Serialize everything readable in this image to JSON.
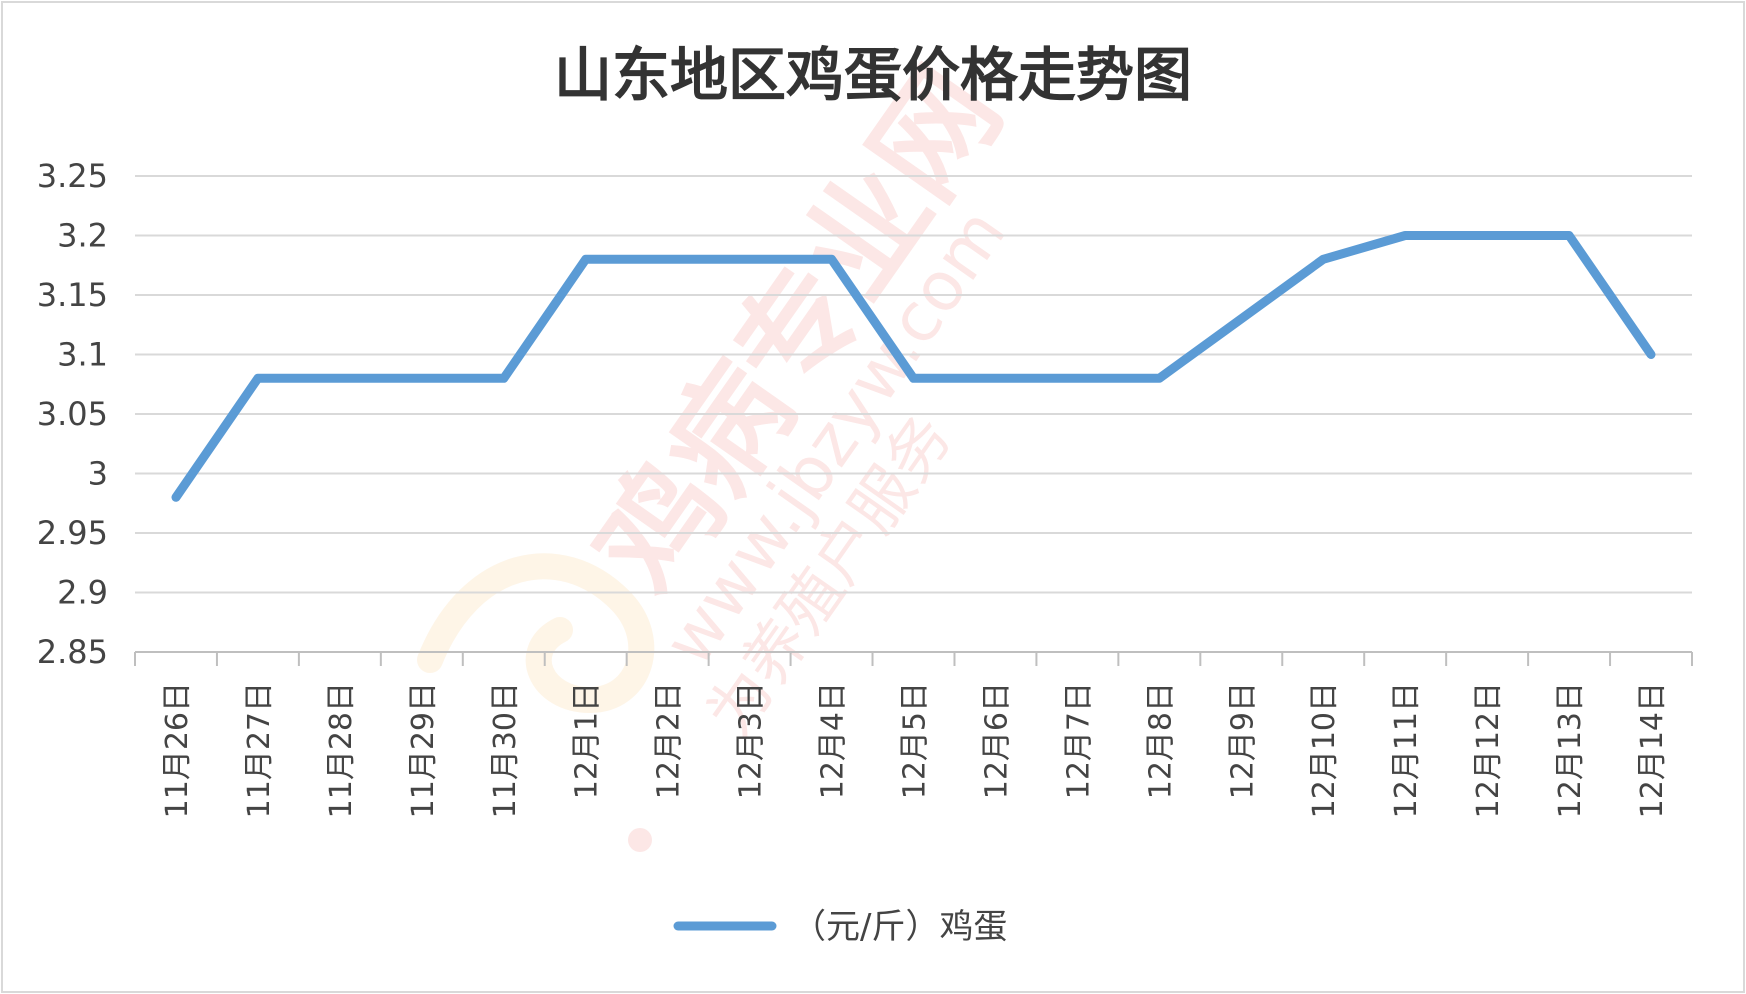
{
  "chart_data": {
    "type": "line",
    "title": "山东地区鸡蛋价格走势图",
    "xlabel": "",
    "ylabel": "",
    "ylim": [
      2.85,
      3.25
    ],
    "yticks": [
      "3.25",
      "3.2",
      "3.15",
      "3.1",
      "3.05",
      "3",
      "2.95",
      "2.9",
      "2.85"
    ],
    "categories": [
      "11月26日",
      "11月27日",
      "11月28日",
      "11月29日",
      "11月30日",
      "12月1日",
      "12月2日",
      "12月3日",
      "12月4日",
      "12月5日",
      "12月6日",
      "12月7日",
      "12月8日",
      "12月9日",
      "12月10日",
      "12月11日",
      "12月12日",
      "12月13日",
      "12月14日"
    ],
    "series": [
      {
        "name": "（元/斤）鸡蛋",
        "color": "#5B9BD5",
        "values": [
          2.98,
          3.08,
          3.08,
          3.08,
          3.08,
          3.18,
          3.18,
          3.18,
          3.18,
          3.08,
          3.08,
          3.08,
          3.08,
          3.13,
          3.18,
          3.2,
          3.2,
          3.2,
          3.1
        ]
      }
    ],
    "grid": true,
    "legend_position": "bottom"
  },
  "watermark": {
    "text_main": "鸡病专业网",
    "text_url": "www.jbzyw.com",
    "text_slogan": "为养殖户服务",
    "color": "#E8483F"
  }
}
